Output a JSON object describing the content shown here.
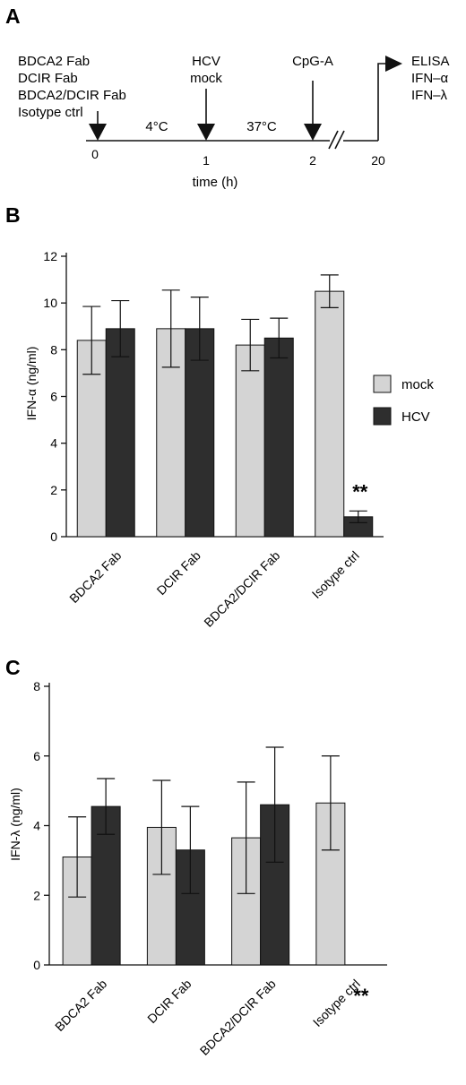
{
  "panel_a": {
    "label": "A",
    "treatments": [
      "BDCA2 Fab",
      "DCIR Fab",
      "BDCA2/DCIR Fab",
      "Isotype ctrl"
    ],
    "infection": [
      "HCV",
      "mock"
    ],
    "stimulus": "CpG-A",
    "readout": [
      "ELISA",
      "IFN–α",
      "IFN–λ"
    ],
    "temp_1": "4°C",
    "temp_2": "37°C",
    "ticks": [
      "0",
      "1",
      "2",
      "20"
    ],
    "axis_label": "time (h)"
  },
  "legend": {
    "mock": "mock",
    "hcv": "HCV"
  },
  "colors": {
    "mock": "#d4d4d4",
    "hcv": "#2e2e2e",
    "axis": "#111111"
  },
  "chart_data": [
    {
      "panel": "B",
      "type": "bar",
      "ylabel": "IFN-α (ng/ml)",
      "ylim": [
        0,
        12
      ],
      "yticks": [
        "0",
        "2",
        "4",
        "6",
        "8",
        "10",
        "12"
      ],
      "categories": [
        "BDCA2 Fab",
        "DCIR Fab",
        "BDCA2/DCIR Fab",
        "Isotype ctrl"
      ],
      "series": [
        {
          "name": "mock",
          "values": [
            8.4,
            8.9,
            8.2,
            10.5
          ],
          "errors": [
            1.45,
            1.65,
            1.1,
            0.7
          ]
        },
        {
          "name": "HCV",
          "values": [
            8.9,
            8.9,
            8.5,
            0.85
          ],
          "errors": [
            1.2,
            1.35,
            0.85,
            0.25
          ]
        }
      ],
      "annotation": {
        "text": "**",
        "category": 3
      }
    },
    {
      "panel": "C",
      "type": "bar",
      "ylabel": "IFN-λ (ng/ml)",
      "ylim": [
        0,
        8
      ],
      "yticks": [
        "0",
        "2",
        "4",
        "6",
        "8"
      ],
      "categories": [
        "BDCA2 Fab",
        "DCIR Fab",
        "BDCA2/DCIR Fab",
        "Isotype ctrl"
      ],
      "series": [
        {
          "name": "mock",
          "values": [
            3.1,
            3.95,
            3.65,
            4.65
          ],
          "errors": [
            1.15,
            1.35,
            1.6,
            1.35
          ]
        },
        {
          "name": "HCV",
          "values": [
            4.55,
            3.3,
            4.6,
            0
          ],
          "errors": [
            0.8,
            1.25,
            1.65,
            0
          ]
        }
      ],
      "annotation": {
        "text": "**",
        "category": 3
      }
    }
  ]
}
